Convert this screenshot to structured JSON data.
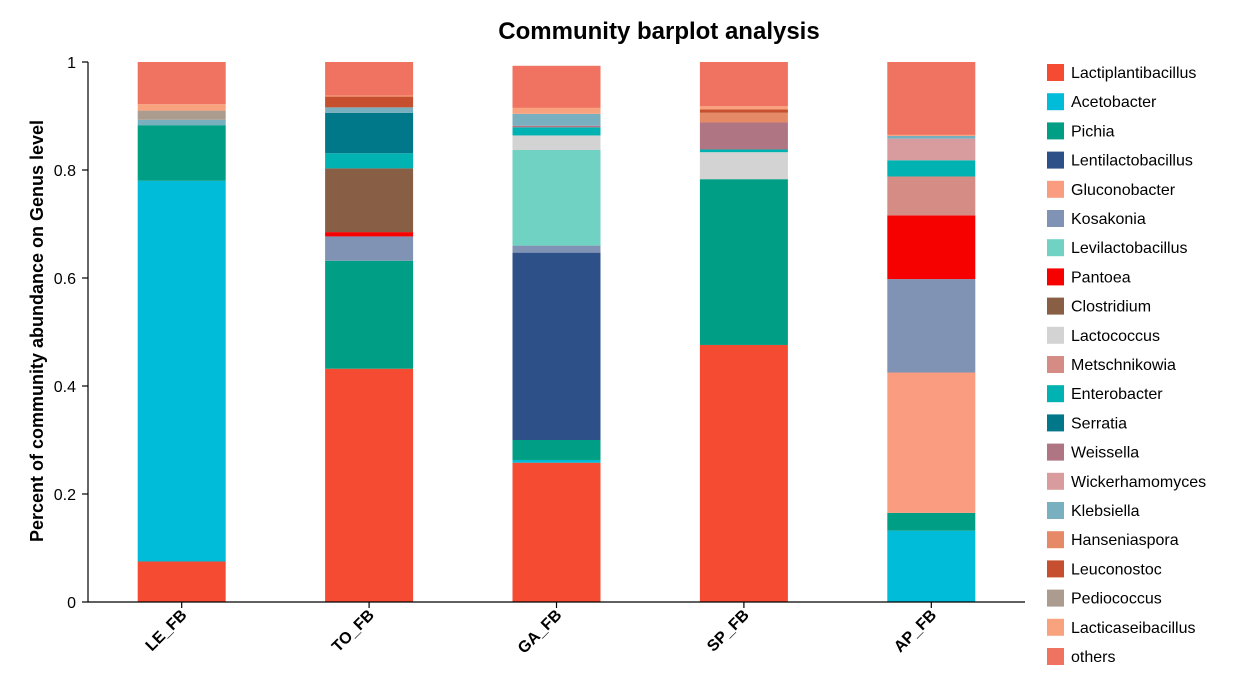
{
  "chart_data": {
    "type": "bar",
    "stacked": true,
    "title": "Community barplot analysis",
    "xlabel": "",
    "ylabel": "Percent of community abundance on Genus level",
    "ylim": [
      0,
      1
    ],
    "yticks": [
      "0",
      "0.2",
      "0.4",
      "0.6",
      "0.8",
      "1"
    ],
    "categories": [
      "LE_FB",
      "TO_FB",
      "GA_FB",
      "SP_FB",
      "AP_FB"
    ],
    "legend_position": "right",
    "series": [
      {
        "name": "Lactiplantibacillus",
        "color": "#F54B32",
        "values": [
          0.075,
          0.432,
          0.258,
          0.476,
          0.0
        ]
      },
      {
        "name": "Acetobacter",
        "color": "#00BCD8",
        "values": [
          0.705,
          0.0,
          0.005,
          0.0,
          0.132
        ]
      },
      {
        "name": "Pichia",
        "color": "#009E84",
        "values": [
          0.103,
          0.2,
          0.037,
          0.307,
          0.033
        ]
      },
      {
        "name": "Lentilactobacillus",
        "color": "#2E5089",
        "values": [
          0.0,
          0.0,
          0.347,
          0.0,
          0.0
        ]
      },
      {
        "name": "Gluconobacter",
        "color": "#F99C7F",
        "values": [
          0.0,
          0.0,
          0.0,
          0.0,
          0.26
        ]
      },
      {
        "name": "Kosakonia",
        "color": "#8093B5",
        "values": [
          0.0,
          0.045,
          0.013,
          0.0,
          0.173
        ]
      },
      {
        "name": "Levilactobacillus",
        "color": "#6FD2C2",
        "values": [
          0.0,
          0.0,
          0.177,
          0.0,
          0.0
        ]
      },
      {
        "name": "Pantoea",
        "color": "#F70000",
        "values": [
          0.0,
          0.008,
          0.0,
          0.0,
          0.118
        ]
      },
      {
        "name": "Clostridium",
        "color": "#885E44",
        "values": [
          0.0,
          0.118,
          0.0,
          0.0,
          0.0
        ]
      },
      {
        "name": "Lactococcus",
        "color": "#D3D3D3",
        "values": [
          0.0,
          0.0,
          0.027,
          0.05,
          0.0
        ]
      },
      {
        "name": "Metschnikowia",
        "color": "#D48C84",
        "values": [
          0.0,
          0.0,
          0.0,
          0.0,
          0.072
        ]
      },
      {
        "name": "Enterobacter",
        "color": "#00B2B2",
        "values": [
          0.0,
          0.028,
          0.015,
          0.005,
          0.03
        ]
      },
      {
        "name": "Serratia",
        "color": "#00788A",
        "values": [
          0.0,
          0.075,
          0.0,
          0.0,
          0.0
        ]
      },
      {
        "name": "Weissella",
        "color": "#AF7583",
        "values": [
          0.0,
          0.0,
          0.003,
          0.05,
          0.0
        ]
      },
      {
        "name": "Wickerhamomyces",
        "color": "#D89C9E",
        "values": [
          0.0,
          0.0,
          0.0,
          0.0,
          0.04
        ]
      },
      {
        "name": "Klebsiella",
        "color": "#79B0BF",
        "values": [
          0.01,
          0.01,
          0.022,
          0.0,
          0.005
        ]
      },
      {
        "name": "Hanseniaspora",
        "color": "#E58967",
        "values": [
          0.0,
          0.0,
          0.0,
          0.018,
          0.0
        ]
      },
      {
        "name": "Leuconostoc",
        "color": "#C54F2E",
        "values": [
          0.0,
          0.02,
          0.0,
          0.006,
          0.0
        ]
      },
      {
        "name": "Pediococcus",
        "color": "#AB9C8F",
        "values": [
          0.017,
          0.0,
          0.0,
          0.0,
          0.0
        ]
      },
      {
        "name": "Lacticaseibacillus",
        "color": "#F9A27E",
        "values": [
          0.012,
          0.002,
          0.011,
          0.006,
          0.002
        ]
      },
      {
        "name": "others",
        "color": "#F07260",
        "values": [
          0.078,
          0.062,
          0.078,
          0.082,
          0.135
        ]
      }
    ]
  }
}
